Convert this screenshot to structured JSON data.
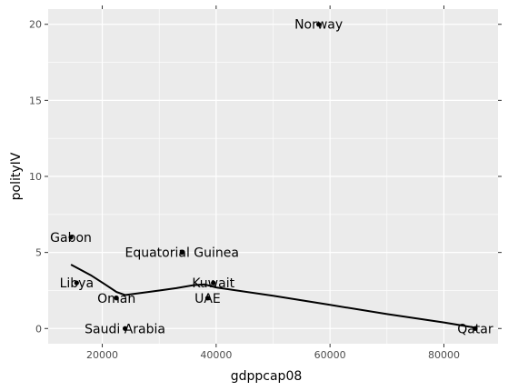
{
  "chart_data": {
    "type": "scatter",
    "xlabel": "gdppcap08",
    "ylabel": "polityIV",
    "xlim": [
      10500,
      89500
    ],
    "ylim": [
      -1,
      21
    ],
    "x_ticks": [
      20000,
      40000,
      60000,
      80000
    ],
    "x_tick_labels": [
      "20000",
      "40000",
      "60000",
      "80000"
    ],
    "y_ticks": [
      0,
      5,
      10,
      15,
      20
    ],
    "y_tick_labels": [
      "0",
      "5",
      "10",
      "15",
      "20"
    ],
    "grid": true,
    "colors": {
      "panel": "#ebebeb",
      "grid": "#ffffff",
      "ink": "#000000",
      "tick_text": "#4d4d4d"
    },
    "points": [
      {
        "label": "Norway",
        "x": 58000,
        "y": 20
      },
      {
        "label": "Gabon",
        "x": 14500,
        "y": 6
      },
      {
        "label": "Equatorial Guinea",
        "x": 34000,
        "y": 5
      },
      {
        "label": "Libya",
        "x": 15500,
        "y": 3
      },
      {
        "label": "Kuwait",
        "x": 39500,
        "y": 3
      },
      {
        "label": "Oman",
        "x": 22500,
        "y": 2
      },
      {
        "label": "UAE",
        "x": 38500,
        "y": 2
      },
      {
        "label": "Saudi Arabia",
        "x": 24000,
        "y": 0
      },
      {
        "label": "Qatar",
        "x": 85500,
        "y": 0
      }
    ],
    "smooth_line": {
      "x": [
        14500,
        18000,
        20500,
        22500,
        24000,
        27000,
        30000,
        33000,
        36000,
        38000,
        40000,
        50000,
        60000,
        70000,
        80000,
        85500
      ],
      "y": [
        4.2,
        3.5,
        2.9,
        2.4,
        2.2,
        2.35,
        2.5,
        2.65,
        2.85,
        2.9,
        2.7,
        2.15,
        1.55,
        0.95,
        0.4,
        0.05
      ]
    }
  }
}
